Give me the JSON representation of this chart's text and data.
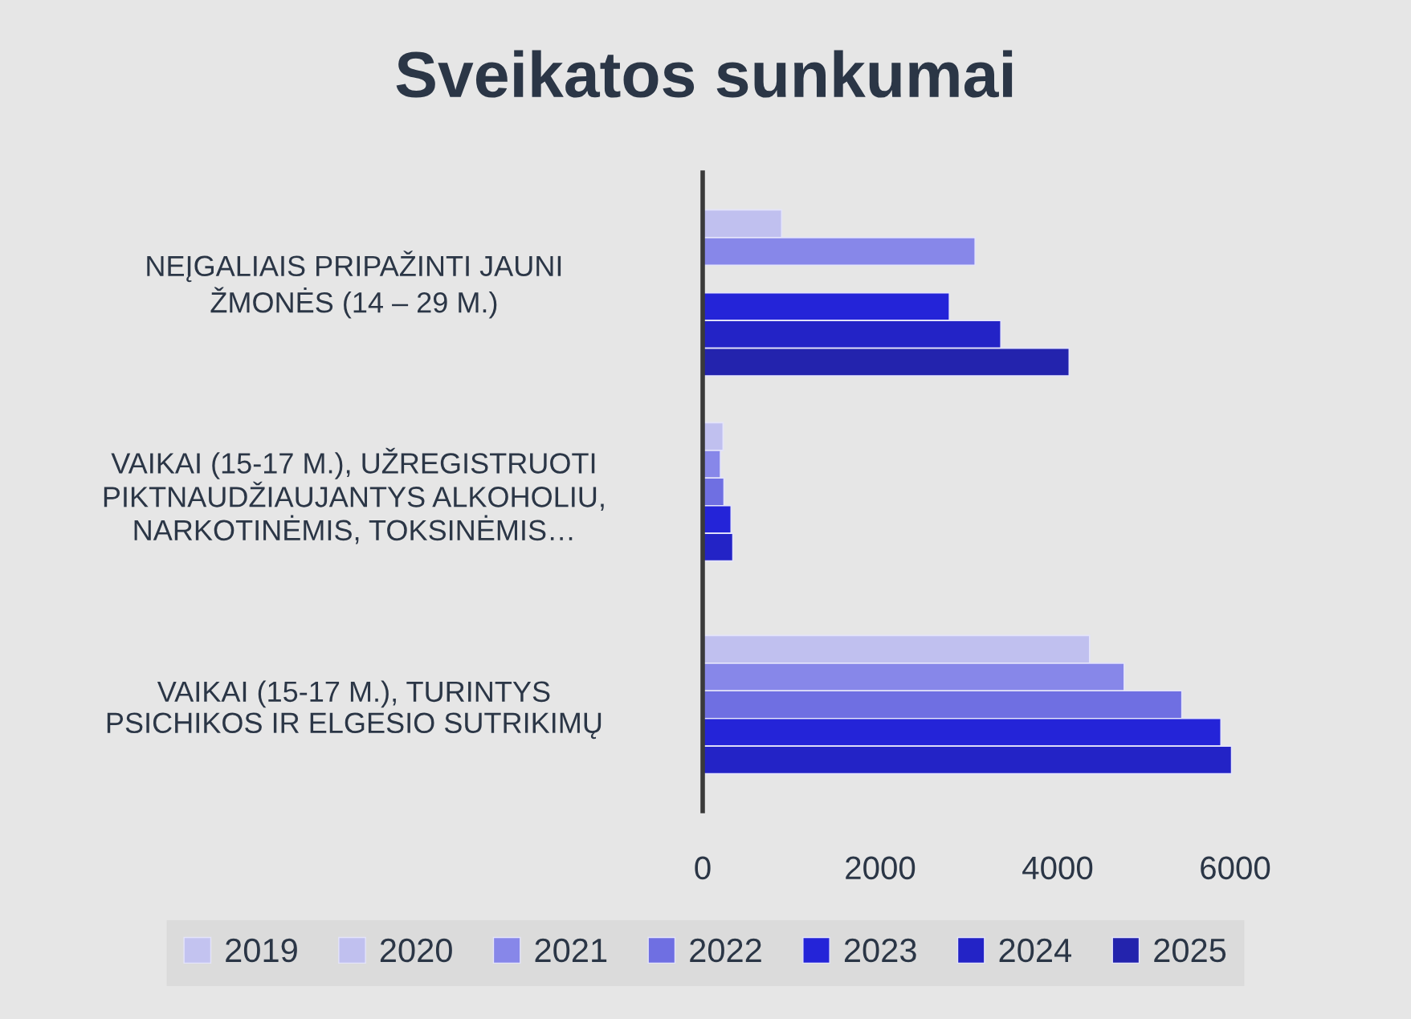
{
  "chart_data": {
    "type": "bar",
    "orientation": "horizontal",
    "title": "Sveikatos sunkumai",
    "categories": [
      "NEĮGALIAIS PRIPAŽINTI JAUNI\nŽMONĖS (14 – 29 M.)",
      "VAIKAI (15-17 M.), UŽREGISTRUOTI\nPIKTNAUDŽIAUJANTYS ALKOHOLIU,\nNARKOTINĖMIS, TOKSINĖMIS…",
      "VAIKAI (15-17 M.), TURINTYS\nPSICHIKOS IR ELGESIO SUTRIKIMŲ"
    ],
    "series": [
      {
        "name": "2019",
        "color": "#c3c3f0",
        "values": [
          null,
          null,
          null
        ]
      },
      {
        "name": "2020",
        "color": "#c0c0ef",
        "values": [
          890,
          230,
          4360
        ]
      },
      {
        "name": "2021",
        "color": "#8787e9",
        "values": [
          3070,
          200,
          4750
        ]
      },
      {
        "name": "2022",
        "color": "#6f6fe2",
        "values": [
          null,
          240,
          5400
        ]
      },
      {
        "name": "2023",
        "color": "#2424d8",
        "values": [
          2780,
          320,
          5840
        ]
      },
      {
        "name": "2024",
        "color": "#2323c6",
        "values": [
          3360,
          340,
          5960
        ]
      },
      {
        "name": "2025",
        "color": "#2323ad",
        "values": [
          4130,
          null,
          null
        ]
      }
    ],
    "xlim": [
      0,
      6000
    ],
    "xticks": [
      0,
      2000,
      4000,
      6000
    ],
    "grid": false,
    "legend": "bottom"
  }
}
